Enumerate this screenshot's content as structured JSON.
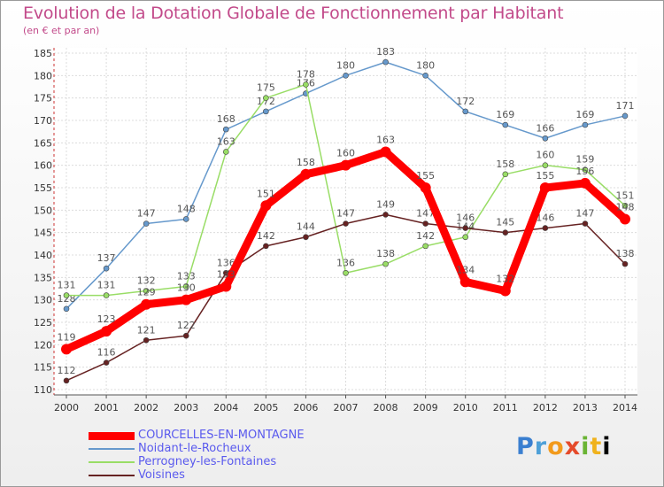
{
  "chart_data": {
    "type": "line",
    "title": "Evolution de la Dotation Globale de Fonctionnement par Habitant",
    "subtitle": "(en € et par an)",
    "xlabel": "",
    "ylabel": "",
    "x": [
      2000,
      2001,
      2002,
      2003,
      2004,
      2005,
      2006,
      2007,
      2008,
      2009,
      2010,
      2011,
      2012,
      2013,
      2014
    ],
    "ylim": [
      110,
      185
    ],
    "yticks": [
      110,
      115,
      120,
      125,
      130,
      135,
      140,
      145,
      150,
      155,
      160,
      165,
      170,
      175,
      180,
      185
    ],
    "grid": true,
    "series": [
      {
        "name": "COURCELLES-EN-MONTAGNE",
        "color": "#ff0000",
        "values": [
          119,
          123,
          129,
          130,
          133,
          151,
          158,
          160,
          163,
          155,
          134,
          132,
          155,
          156,
          148
        ]
      },
      {
        "name": "Noidant-le-Rocheux",
        "color": "#6699cc",
        "values": [
          128,
          137,
          147,
          148,
          168,
          172,
          176,
          180,
          183,
          180,
          172,
          169,
          166,
          169,
          171
        ]
      },
      {
        "name": "Perrogney-les-Fontaines",
        "color": "#99dd66",
        "values": [
          131,
          131,
          132,
          133,
          163,
          175,
          178,
          136,
          138,
          142,
          144,
          158,
          160,
          159,
          151
        ]
      },
      {
        "name": "Voisines",
        "color": "#662222",
        "values": [
          112,
          116,
          121,
          122,
          136,
          142,
          144,
          147,
          149,
          147,
          146,
          145,
          146,
          147,
          138
        ]
      }
    ]
  },
  "logo": {
    "letters": [
      "P",
      "r",
      "o",
      "x",
      "i",
      "t",
      "i"
    ]
  }
}
